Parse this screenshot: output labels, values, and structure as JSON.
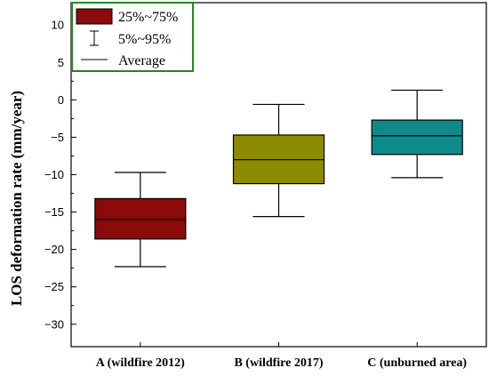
{
  "chart_data": {
    "type": "box",
    "ylabel": "LOS deformation rate (mm/year)",
    "ylim": [
      -33,
      13
    ],
    "yticks": [
      10,
      5,
      0,
      -5,
      -10,
      -15,
      -20,
      -25,
      -30
    ],
    "grid": false,
    "legend_placement": "top-left",
    "legend": {
      "box_label": "25%~75%",
      "whisker_label": "5%~95%",
      "mean_label": "Average"
    },
    "categories": [
      "A (wildfire 2012)",
      "B (wildfire 2017)",
      "C (unburned area)"
    ],
    "boxes": [
      {
        "category": "A (wildfire 2012)",
        "whisker_low": -22.3,
        "q1": -18.6,
        "mean": -16.0,
        "q3": -13.2,
        "whisker_high": -9.7,
        "color": "#8b0a0a"
      },
      {
        "category": "B (wildfire 2017)",
        "whisker_low": -15.6,
        "q1": -11.2,
        "mean": -8.0,
        "q3": -4.7,
        "whisker_high": -0.6,
        "color": "#8d8c00"
      },
      {
        "category": "C (unburned area)",
        "whisker_low": -10.4,
        "q1": -7.3,
        "mean": -4.8,
        "q3": -2.7,
        "whisker_high": 1.3,
        "color": "#0f8a8a"
      }
    ]
  }
}
